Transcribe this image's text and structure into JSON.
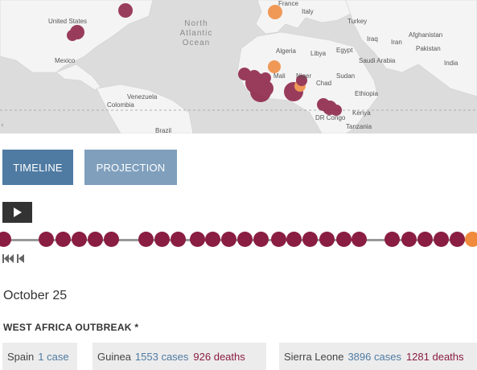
{
  "map": {
    "ocean": [
      "North",
      "Atlantic",
      "Ocean"
    ],
    "labels": {
      "united_states": "United States",
      "mexico": "Mexico",
      "venezuela": "Venezuela",
      "colombia": "Colombia",
      "brazil": "Brazil",
      "france": "France",
      "italy": "Italy",
      "turkey": "Turkey",
      "iraq": "Iraq",
      "iran": "Iran",
      "afghanistan": "Afghanistan",
      "pakistan": "Pakistan",
      "india": "India",
      "algeria": "Algeria",
      "libya": "Libya",
      "egypt": "Egypt",
      "saudi_arabia": "Saudi Arabia",
      "mali": "Mali",
      "niger": "Niger",
      "chad": "Chad",
      "sudan": "Sudan",
      "ethiopia": "Ethiopia",
      "kenya": "Kenya",
      "dr_congo": "DR Congo",
      "tanzania": "Tanzania"
    },
    "colors": {
      "land": "#f4f4f4",
      "water": "#dcdcdc",
      "case_marker": "#8a1d42",
      "new_marker": "#f08a3c"
    }
  },
  "tabs": {
    "timeline": "TIMELINE",
    "projection": "PROJECTION"
  },
  "date": "October 25",
  "outbreak_title": "WEST AFRICA OUTBREAK *",
  "countries": [
    {
      "name": "Spain",
      "cases": "1 case",
      "deaths": ""
    },
    {
      "name": "Guinea",
      "cases": "1553 cases",
      "deaths": "926 deaths"
    },
    {
      "name": "Sierra Leone",
      "cases": "3896 cases",
      "deaths": "1281 deaths"
    }
  ],
  "icons": {
    "play": "play-icon",
    "rewind": "skip-to-start-icon",
    "step_back": "step-back-icon"
  }
}
